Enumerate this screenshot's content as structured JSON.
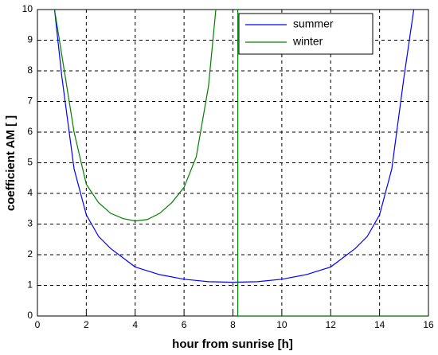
{
  "chart_data": {
    "type": "line",
    "xlabel": "hour from sunrise [h]",
    "ylabel": "coefficient AM [ ]",
    "xlim": [
      0,
      16
    ],
    "xticks": [
      0,
      2,
      4,
      6,
      8,
      10,
      12,
      14,
      16
    ],
    "ylim": [
      0,
      10
    ],
    "yticks": [
      0,
      1,
      2,
      3,
      4,
      5,
      6,
      7,
      8,
      9,
      10
    ],
    "grid": true,
    "legend": "upper right",
    "series": [
      {
        "name": "summer",
        "color": "#0000ff",
        "x": [
          0.7,
          1,
          1.5,
          2,
          2.5,
          3,
          4,
          5,
          6,
          7,
          8,
          9,
          10,
          11,
          12,
          13,
          13.5,
          14,
          14.5,
          15,
          15.4
        ],
        "values": [
          10,
          7.8,
          4.8,
          3.3,
          2.6,
          2.2,
          1.6,
          1.35,
          1.2,
          1.12,
          1.1,
          1.12,
          1.2,
          1.35,
          1.6,
          2.2,
          2.6,
          3.3,
          4.8,
          7.8,
          10
        ]
      },
      {
        "name": "winter",
        "color": "#008000",
        "x": [
          0.7,
          1,
          1.5,
          2,
          2.5,
          3,
          3.5,
          4,
          4.5,
          5,
          5.5,
          6,
          6.5,
          7,
          7.3,
          7.8,
          8.2,
          8.2,
          16
        ],
        "values": [
          10,
          8.5,
          6,
          4.3,
          3.7,
          3.35,
          3.18,
          3.1,
          3.15,
          3.35,
          3.7,
          4.2,
          5.2,
          7.5,
          10,
          null,
          10,
          0,
          0
        ]
      }
    ]
  }
}
